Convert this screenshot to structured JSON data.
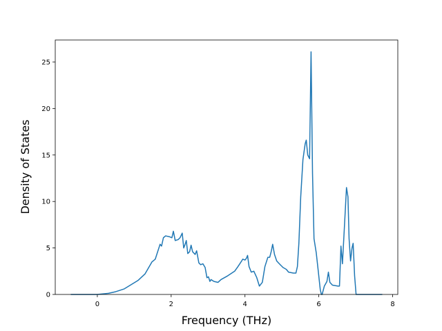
{
  "chart_data": {
    "type": "line",
    "x_label": "Frequency (THz)",
    "y_label": "Density of States",
    "color": "#1f77b4",
    "xlim": [
      -1.14,
      8.14
    ],
    "ylim": [
      0,
      27.37
    ],
    "xticks": [
      0,
      2,
      4,
      6,
      8
    ],
    "yticks": [
      0,
      5,
      10,
      15,
      20,
      25
    ],
    "x": [
      -0.72,
      -0.4,
      0,
      0.3,
      0.5,
      0.73,
      1.1,
      1.29,
      1.48,
      1.57,
      1.7,
      1.74,
      1.79,
      1.85,
      1.96,
      2.02,
      2.06,
      2.11,
      2.19,
      2.24,
      2.3,
      2.34,
      2.37,
      2.41,
      2.45,
      2.5,
      2.54,
      2.58,
      2.65,
      2.69,
      2.75,
      2.8,
      2.86,
      2.92,
      2.97,
      3.01,
      3.05,
      3.08,
      3.16,
      3.27,
      3.35,
      3.53,
      3.72,
      3.81,
      3.91,
      3.94,
      4.0,
      4.04,
      4.07,
      4.11,
      4.17,
      4.24,
      4.32,
      4.39,
      4.47,
      4.54,
      4.62,
      4.67,
      4.71,
      4.75,
      4.8,
      4.86,
      4.93,
      5.03,
      5.12,
      5.18,
      5.31,
      5.38,
      5.42,
      5.46,
      5.51,
      5.57,
      5.63,
      5.66,
      5.7,
      5.75,
      5.79,
      5.83,
      5.87,
      5.93,
      5.98,
      6.04,
      6.07,
      6.09,
      6.15,
      6.22,
      6.26,
      6.3,
      6.37,
      6.52,
      6.56,
      6.6,
      6.64,
      6.69,
      6.75,
      6.79,
      6.82,
      6.86,
      6.9,
      6.93,
      6.97,
      7.01,
      7.4,
      7.72
    ],
    "values": [
      0,
      0,
      0,
      0.12,
      0.3,
      0.6,
      1.5,
      2.2,
      3.5,
      3.8,
      5.4,
      5.2,
      6.1,
      6.3,
      6.2,
      6.1,
      6.8,
      5.8,
      5.9,
      6.1,
      6.6,
      5.0,
      5.3,
      5.8,
      4.4,
      4.6,
      5.3,
      4.6,
      4.3,
      4.7,
      3.4,
      3.2,
      3.3,
      2.9,
      1.8,
      1.9,
      1.4,
      1.6,
      1.4,
      1.3,
      1.6,
      2.0,
      2.5,
      3.0,
      3.6,
      3.8,
      3.7,
      3.9,
      4.2,
      3.0,
      2.4,
      2.5,
      1.8,
      0.9,
      1.3,
      3.0,
      4.0,
      4.0,
      4.6,
      5.4,
      4.3,
      3.6,
      3.3,
      2.9,
      2.7,
      2.4,
      2.3,
      2.3,
      3.0,
      5.5,
      10.5,
      14.5,
      16.2,
      16.6,
      15.0,
      14.6,
      26.1,
      13.0,
      6.0,
      4.5,
      2.7,
      0.5,
      0,
      0,
      0.9,
      1.4,
      2.4,
      1.3,
      1.0,
      0.9,
      0.9,
      5.2,
      3.3,
      7.0,
      11.5,
      10.5,
      6.0,
      3.6,
      5.0,
      5.5,
      2.0,
      0,
      0,
      0
    ]
  }
}
